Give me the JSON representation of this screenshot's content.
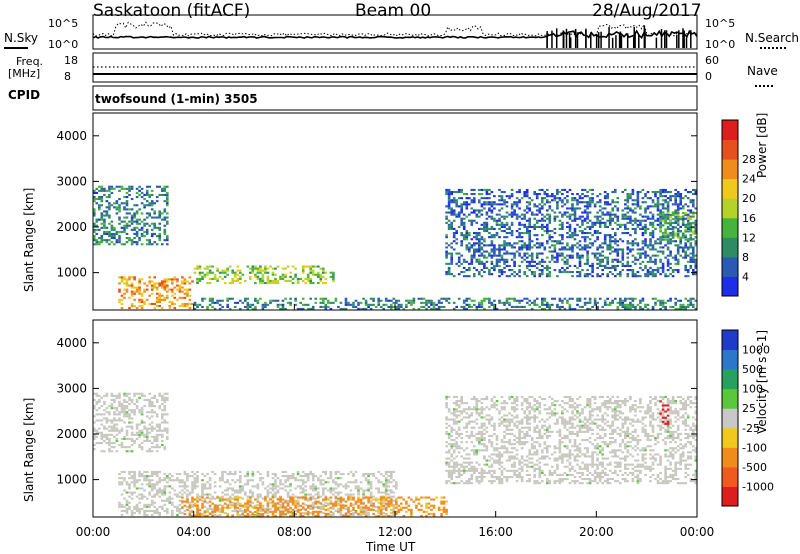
{
  "header": {
    "station": "Saskatoon (fitACF)",
    "beam": "Beam 00",
    "date": "28/Aug/2017"
  },
  "noise_panel": {
    "left_label": "N.Sky",
    "right_label": "N.Search",
    "left_ticks": [
      "10^5",
      "10^0"
    ],
    "right_ticks": [
      "10^5",
      "10^0"
    ]
  },
  "freq_panel": {
    "left_label_1": "Freq.",
    "left_label_2": "[MHz]",
    "left_ticks": [
      "18",
      "8"
    ],
    "right_ticks": [
      "60",
      "0"
    ],
    "right_label": "Nave",
    "cpid_label": "CPID",
    "cpid_value": "twofsound (1-min) 3505"
  },
  "colors": {
    "ground_scatter": "#c8c8c0",
    "power": [
      "#1e2ee6",
      "#2a5ab4",
      "#2e8c64",
      "#46b43c",
      "#b4d22a",
      "#f0c81e",
      "#f08c1e",
      "#e6501e",
      "#dc1e1e"
    ],
    "velocity": [
      "#1e3cc8",
      "#2c78c8",
      "#28a060",
      "#5ac83c",
      "#c8c8c8",
      "#f0c81e",
      "#f08c1e",
      "#f05a1e",
      "#dc1e1e"
    ]
  },
  "chart_data": [
    {
      "type": "heatmap",
      "panel": "power",
      "ylabel": "Slant Range [km]",
      "xlabel": "Time UT",
      "x_ticks": [
        "00:00",
        "04:00",
        "08:00",
        "12:00",
        "16:00",
        "20:00",
        "00:00"
      ],
      "y_ticks": [
        "1000",
        "2000",
        "3000",
        "4000"
      ],
      "ylim": [
        180,
        4500
      ],
      "xlim_hours": [
        0,
        24
      ],
      "colorbar_label": "Power [dB]",
      "colorbar_ticks": [
        "4",
        "8",
        "12",
        "16",
        "20",
        "24",
        "28"
      ],
      "regions": [
        {
          "t": [
            0,
            3.0
          ],
          "r": [
            1600,
            2900
          ],
          "value": 8
        },
        {
          "t": [
            1.0,
            4.0
          ],
          "r": [
            200,
            900
          ],
          "value": 22
        },
        {
          "t": [
            4.0,
            9.5
          ],
          "r": [
            750,
            1150
          ],
          "value": 14
        },
        {
          "t": [
            4.0,
            24
          ],
          "r": [
            180,
            450
          ],
          "value": 8
        },
        {
          "t": [
            14.0,
            24
          ],
          "r": [
            900,
            2800
          ],
          "value": 6
        },
        {
          "t": [
            22.5,
            24
          ],
          "r": [
            1700,
            2300
          ],
          "value": 12
        }
      ]
    },
    {
      "type": "heatmap",
      "panel": "velocity",
      "ylabel": "Slant Range [km]",
      "xlabel": "Time UT",
      "x_ticks": [
        "00:00",
        "04:00",
        "08:00",
        "12:00",
        "16:00",
        "20:00",
        "00:00"
      ],
      "y_ticks": [
        "1000",
        "2000",
        "3000",
        "4000"
      ],
      "ylim": [
        180,
        4500
      ],
      "xlim_hours": [
        0,
        24
      ],
      "colorbar_label": "Velocity [m s^-1]",
      "colorbar_ticks": [
        "1000",
        "500",
        "100",
        "25",
        "-25",
        "-100",
        "-500",
        "-1000"
      ],
      "regions": [
        {
          "t": [
            0,
            3.0
          ],
          "r": [
            1600,
            2900
          ],
          "value": 0,
          "ground_scatter": true
        },
        {
          "t": [
            1.0,
            12.0
          ],
          "r": [
            200,
            1150
          ],
          "value": 0,
          "ground_scatter": true
        },
        {
          "t": [
            3.5,
            14.0
          ],
          "r": [
            180,
            600
          ],
          "value": -100
        },
        {
          "t": [
            14.0,
            24
          ],
          "r": [
            900,
            2800
          ],
          "value": 0,
          "ground_scatter": true
        },
        {
          "t": [
            22.5,
            22.9
          ],
          "r": [
            2200,
            2700
          ],
          "value": -1000
        }
      ]
    }
  ]
}
